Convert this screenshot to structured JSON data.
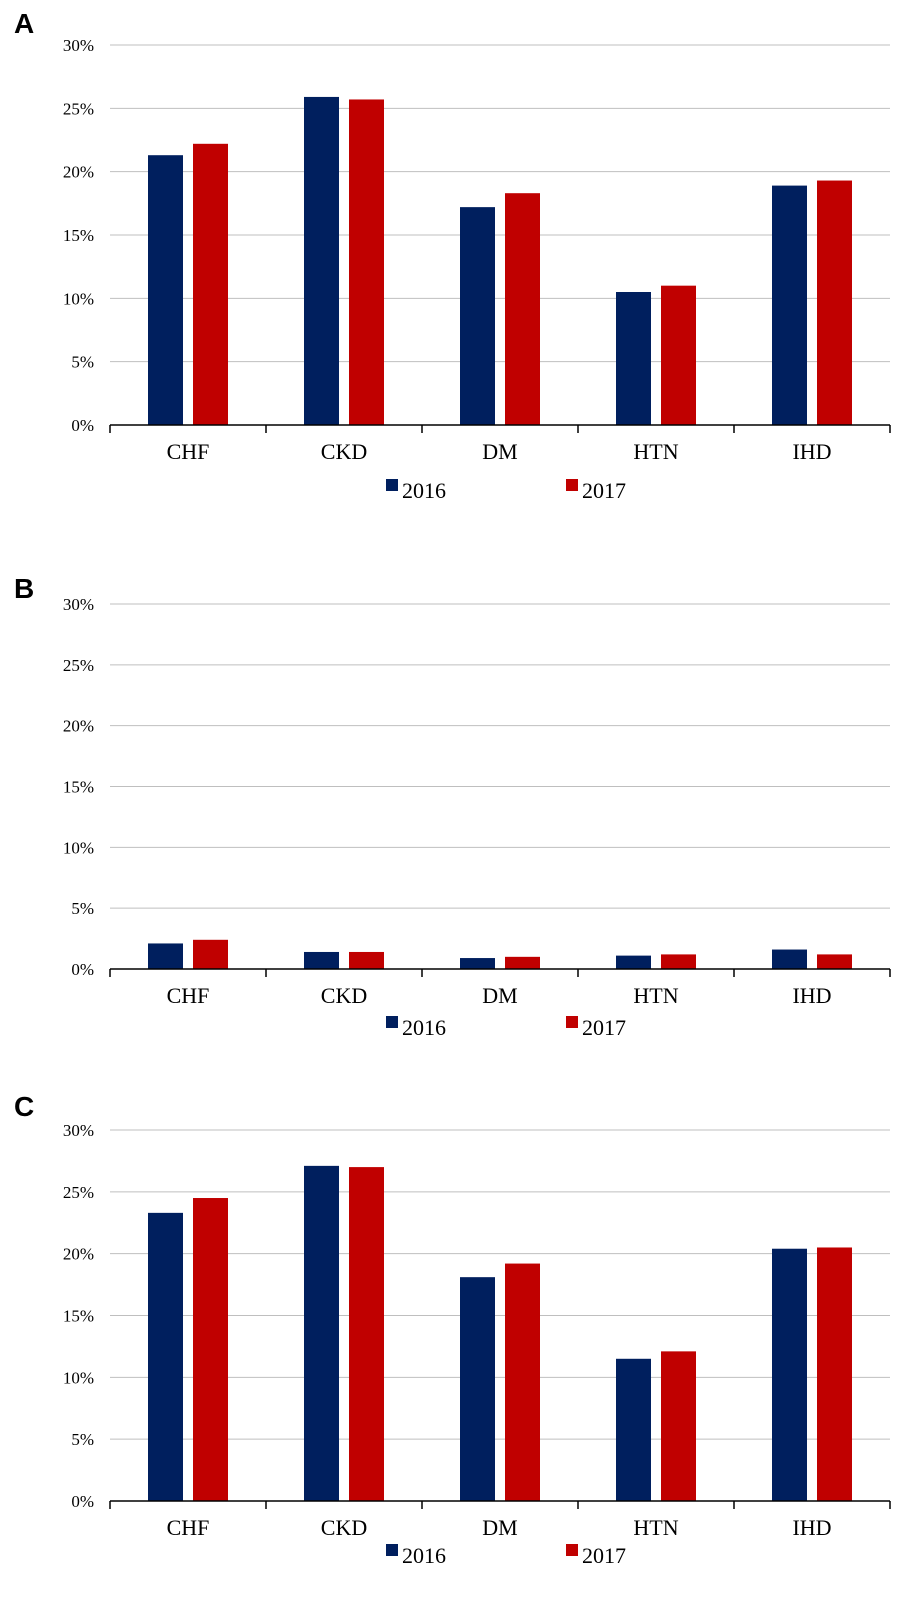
{
  "colors": {
    "series_2016": "#001f5e",
    "series_2017": "#c00000",
    "grid": "#bfbfbf",
    "axis": "#000000"
  },
  "panels": [
    {
      "label": "A"
    },
    {
      "label": "B"
    },
    {
      "label": "C"
    }
  ],
  "chart_data": [
    {
      "type": "bar",
      "panel": "A",
      "categories": [
        "CHF",
        "CKD",
        "DM",
        "HTN",
        "IHD"
      ],
      "series": [
        {
          "name": "2016",
          "values": [
            21.3,
            25.9,
            17.2,
            10.5,
            18.9
          ]
        },
        {
          "name": "2017",
          "values": [
            22.2,
            25.7,
            18.3,
            11.0,
            19.3
          ]
        }
      ],
      "ylim": [
        0,
        30
      ],
      "yticks": [
        "0%",
        "5%",
        "10%",
        "15%",
        "20%",
        "25%",
        "30%"
      ],
      "grid": true,
      "legend": "bottom"
    },
    {
      "type": "bar",
      "panel": "B",
      "categories": [
        "CHF",
        "CKD",
        "DM",
        "HTN",
        "IHD"
      ],
      "series": [
        {
          "name": "2016",
          "values": [
            2.1,
            1.4,
            0.9,
            1.1,
            1.6
          ]
        },
        {
          "name": "2017",
          "values": [
            2.4,
            1.4,
            1.0,
            1.2,
            1.2
          ]
        }
      ],
      "ylim": [
        0,
        30
      ],
      "yticks": [
        "0%",
        "5%",
        "10%",
        "15%",
        "20%",
        "25%",
        "30%"
      ],
      "grid": true,
      "legend": "bottom"
    },
    {
      "type": "bar",
      "panel": "C",
      "categories": [
        "CHF",
        "CKD",
        "DM",
        "HTN",
        "IHD"
      ],
      "series": [
        {
          "name": "2016",
          "values": [
            23.3,
            27.1,
            18.1,
            11.5,
            20.4
          ]
        },
        {
          "name": "2017",
          "values": [
            24.5,
            27.0,
            19.2,
            12.1,
            20.5
          ]
        }
      ],
      "ylim": [
        0,
        30
      ],
      "yticks": [
        "0%",
        "5%",
        "10%",
        "15%",
        "20%",
        "25%",
        "30%"
      ],
      "grid": true,
      "legend": "bottom"
    }
  ]
}
